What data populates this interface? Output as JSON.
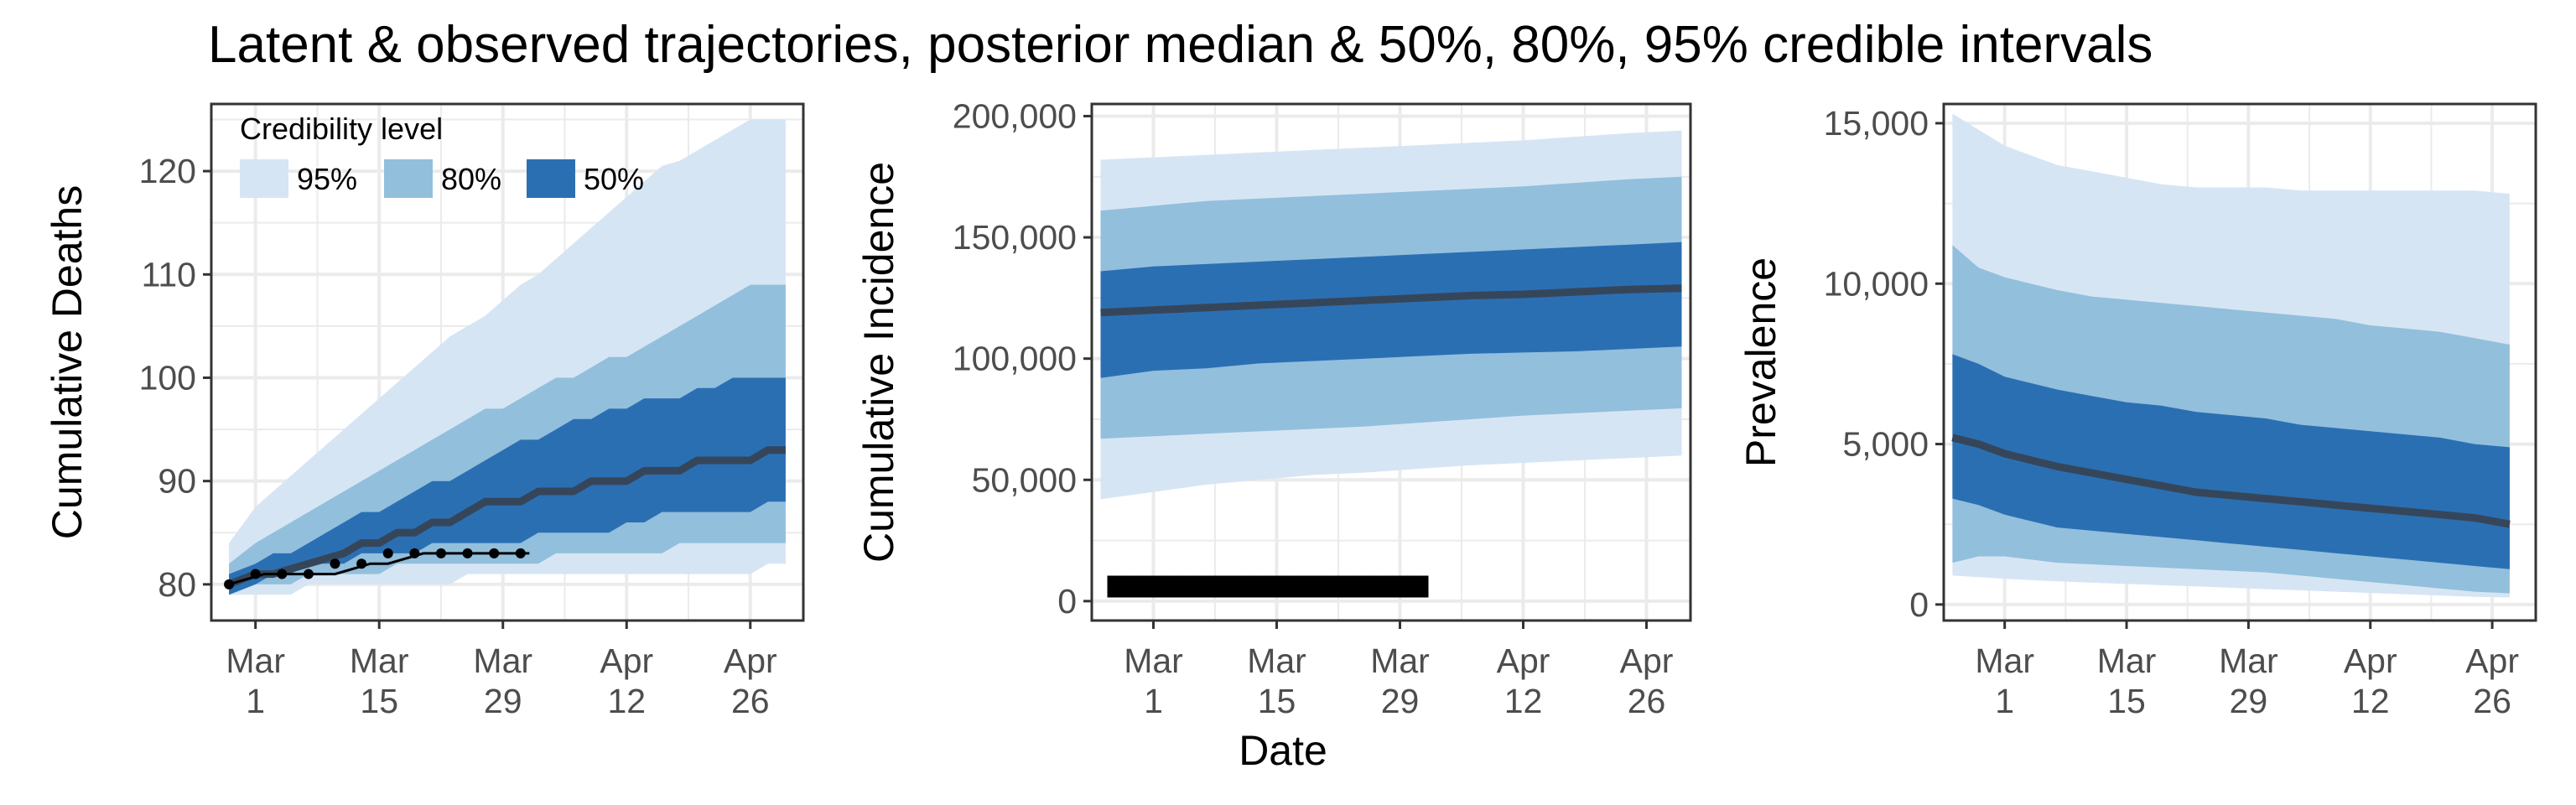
{
  "title": "Latent & observed trajectories, posterior median & 50%, 80%, 95% credible intervals",
  "xlabel": "Date",
  "colors": {
    "band95": "#d6e5f4",
    "band80": "#92bfdc",
    "band50": "#2b6fb3",
    "median": "#36465a",
    "observed": "#000000",
    "grid": "#ebebeb",
    "panel_border": "#333333"
  },
  "chart_data": [
    {
      "type": "area",
      "ylabel": "Cumulative Deaths",
      "xlim": [
        -5,
        62
      ],
      "ylim": [
        76.5,
        126.5
      ],
      "x_ticks": [
        {
          "x": 0,
          "label": [
            "Mar",
            "1"
          ]
        },
        {
          "x": 14,
          "label": [
            "Mar",
            "15"
          ]
        },
        {
          "x": 28,
          "label": [
            "Mar",
            "29"
          ]
        },
        {
          "x": 42,
          "label": [
            "Apr",
            "12"
          ]
        },
        {
          "x": 56,
          "label": [
            "Apr",
            "26"
          ]
        }
      ],
      "y_ticks": [
        80,
        90,
        100,
        110,
        120
      ],
      "y_tick_labels": [
        "80",
        "90",
        "100",
        "110",
        "120"
      ],
      "grid": true,
      "legend": {
        "title": "Credibility level",
        "position": "top-left",
        "items": [
          {
            "label": "95%",
            "band": "band95"
          },
          {
            "label": "80%",
            "band": "band80"
          },
          {
            "label": "50%",
            "band": "band50"
          }
        ]
      },
      "x": [
        -3,
        0,
        2,
        4,
        6,
        8,
        10,
        12,
        14,
        16,
        18,
        20,
        22,
        24,
        26,
        28,
        30,
        32,
        34,
        36,
        38,
        40,
        42,
        44,
        46,
        48,
        50,
        52,
        54,
        56,
        58,
        60
      ],
      "bands": {
        "p95": {
          "lower": [
            79,
            79,
            79,
            79,
            80,
            80,
            80,
            80,
            80,
            80,
            80,
            80,
            80,
            81,
            81,
            81,
            81,
            81,
            81,
            81,
            81,
            81,
            81,
            81,
            81,
            81,
            81,
            81,
            81,
            81,
            82,
            82
          ],
          "upper": [
            84,
            87.5,
            89,
            90.5,
            92,
            93.5,
            95,
            96.5,
            98,
            99.5,
            101,
            102.5,
            104,
            105,
            106,
            107.5,
            109,
            110,
            111.5,
            113,
            114.5,
            116,
            117.5,
            119,
            120.5,
            121,
            122,
            123,
            124,
            125,
            125,
            125
          ]
        },
        "p80": {
          "lower": [
            79,
            80,
            80,
            80,
            81,
            81,
            81,
            81,
            81,
            82,
            82,
            82,
            82,
            82,
            82,
            82,
            82,
            82,
            83,
            83,
            83,
            83,
            83,
            83,
            83,
            84,
            84,
            84,
            84,
            84,
            84,
            84
          ],
          "upper": [
            82,
            84,
            85,
            86,
            87,
            88,
            89,
            90,
            91,
            92,
            93,
            94,
            95,
            96,
            97,
            97,
            98,
            99,
            100,
            100,
            101,
            102,
            102,
            103,
            104,
            105,
            106,
            107,
            108,
            109,
            109,
            109
          ]
        },
        "p50": {
          "lower": [
            79,
            80,
            81,
            81,
            82,
            82,
            82,
            83,
            83,
            83,
            83,
            84,
            84,
            84,
            84,
            84,
            84,
            85,
            85,
            85,
            85,
            85,
            86,
            86,
            87,
            87,
            87,
            87,
            87,
            87,
            88,
            88
          ],
          "upper": [
            81,
            82,
            83,
            83,
            84,
            85,
            86,
            87,
            87,
            88,
            89,
            90,
            90,
            91,
            92,
            93,
            94,
            94,
            95,
            96,
            96,
            97,
            97,
            98,
            98,
            98,
            99,
            99,
            100,
            100,
            100,
            100
          ]
        }
      },
      "median": {
        "x": [
          -3,
          0,
          2,
          4,
          6,
          8,
          10,
          12,
          14,
          16,
          18,
          20,
          22,
          24,
          26,
          28,
          30,
          32,
          34,
          36,
          38,
          40,
          42,
          44,
          46,
          48,
          50,
          52,
          54,
          56,
          58,
          60
        ],
        "y": [
          80,
          81,
          81,
          81.5,
          82,
          82.5,
          83,
          84,
          84,
          85,
          85,
          86,
          86,
          87,
          88,
          88,
          88,
          89,
          89,
          89,
          90,
          90,
          90,
          91,
          91,
          91,
          92,
          92,
          92,
          92,
          93,
          93
        ]
      },
      "observed": {
        "x": [
          -3,
          -1,
          1,
          3,
          5,
          7,
          9,
          11,
          13,
          15,
          17,
          19,
          21,
          23,
          25,
          27,
          29,
          31
        ],
        "y": [
          80,
          80.5,
          81,
          81,
          81,
          81,
          81,
          81.5,
          82,
          82,
          82.5,
          83,
          83,
          83,
          83,
          83,
          83,
          83
        ],
        "points_x": [
          -3,
          0,
          3,
          6,
          9,
          12,
          15,
          18,
          21,
          24,
          27,
          30
        ],
        "points_y": [
          80,
          81,
          81,
          81,
          82,
          82,
          83,
          83,
          83,
          83,
          83,
          83
        ]
      }
    },
    {
      "type": "area",
      "ylabel": "Cumulative Incidence",
      "xlim": [
        -7,
        61
      ],
      "ylim": [
        -8000,
        205000
      ],
      "x_ticks": [
        {
          "x": 0,
          "label": [
            "Mar",
            "1"
          ]
        },
        {
          "x": 14,
          "label": [
            "Mar",
            "15"
          ]
        },
        {
          "x": 28,
          "label": [
            "Mar",
            "29"
          ]
        },
        {
          "x": 42,
          "label": [
            "Apr",
            "12"
          ]
        },
        {
          "x": 56,
          "label": [
            "Apr",
            "26"
          ]
        }
      ],
      "y_ticks": [
        0,
        50000,
        100000,
        150000,
        200000
      ],
      "y_tick_labels": [
        "0",
        "50,000",
        "100,000",
        "150,000",
        "200,000"
      ],
      "grid": true,
      "x": [
        -6,
        0,
        6,
        12,
        18,
        24,
        30,
        36,
        42,
        48,
        54,
        60
      ],
      "bands": {
        "p95": {
          "lower": [
            42000,
            45000,
            48000,
            50000,
            52000,
            53000,
            54500,
            56000,
            57000,
            58000,
            59000,
            60000
          ],
          "upper": [
            182000,
            183000,
            184000,
            185000,
            186000,
            187000,
            188000,
            189000,
            190000,
            191500,
            193000,
            194000
          ]
        },
        "p80": {
          "lower": [
            67000,
            68000,
            69000,
            70000,
            71000,
            72000,
            73500,
            75000,
            76500,
            77500,
            78500,
            79500
          ],
          "upper": [
            161000,
            163000,
            165000,
            166000,
            167000,
            168000,
            169000,
            170000,
            171000,
            172500,
            174000,
            175000
          ]
        },
        "p50": {
          "lower": [
            92000,
            95000,
            96000,
            98000,
            99000,
            100000,
            101000,
            102000,
            102500,
            103000,
            104000,
            105000
          ],
          "upper": [
            136000,
            138000,
            139000,
            140000,
            141000,
            142000,
            143000,
            144000,
            145000,
            146000,
            147000,
            148000
          ]
        }
      },
      "median": {
        "x": [
          -6,
          0,
          6,
          12,
          18,
          24,
          30,
          36,
          42,
          48,
          54,
          60
        ],
        "y": [
          119000,
          120000,
          121000,
          122000,
          123000,
          124000,
          125000,
          126000,
          126500,
          127500,
          128500,
          129000
        ]
      },
      "observed_squares": {
        "x": [
          -4,
          -2,
          0,
          2,
          4,
          6,
          8,
          10,
          12,
          14,
          16,
          18,
          20,
          22,
          24,
          26,
          28,
          30
        ],
        "y": [
          6000,
          6000,
          6000,
          6000,
          6000,
          6000,
          6000,
          6000,
          6000,
          6000,
          6000,
          6000,
          6000,
          6000,
          6000,
          6000,
          6000,
          6000
        ]
      }
    },
    {
      "type": "area",
      "ylabel": "Prevalence",
      "xlim": [
        -7,
        61
      ],
      "ylim": [
        -500,
        15600
      ],
      "x_ticks": [
        {
          "x": 0,
          "label": [
            "Mar",
            "1"
          ]
        },
        {
          "x": 14,
          "label": [
            "Mar",
            "15"
          ]
        },
        {
          "x": 28,
          "label": [
            "Mar",
            "29"
          ]
        },
        {
          "x": 42,
          "label": [
            "Apr",
            "12"
          ]
        },
        {
          "x": 56,
          "label": [
            "Apr",
            "26"
          ]
        }
      ],
      "y_ticks": [
        0,
        5000,
        10000,
        15000
      ],
      "y_tick_labels": [
        "0",
        "5,000",
        "10,000",
        "15,000"
      ],
      "grid": true,
      "x": [
        -6,
        -3,
        0,
        3,
        6,
        10,
        14,
        18,
        22,
        26,
        30,
        34,
        38,
        42,
        46,
        50,
        54,
        58
      ],
      "bands": {
        "p95": {
          "lower": [
            900,
            850,
            800,
            760,
            720,
            680,
            640,
            600,
            560,
            520,
            480,
            440,
            400,
            360,
            320,
            280,
            240,
            220
          ],
          "upper": [
            15300,
            14800,
            14300,
            14000,
            13700,
            13500,
            13300,
            13100,
            13000,
            13000,
            13000,
            12900,
            12900,
            12900,
            12900,
            12900,
            12900,
            12800
          ]
        },
        "p80": {
          "lower": [
            1300,
            1500,
            1500,
            1400,
            1300,
            1250,
            1200,
            1150,
            1100,
            1050,
            1000,
            900,
            800,
            700,
            600,
            500,
            400,
            350
          ],
          "upper": [
            11200,
            10500,
            10200,
            10000,
            9800,
            9600,
            9500,
            9400,
            9300,
            9200,
            9100,
            9000,
            8900,
            8700,
            8600,
            8500,
            8300,
            8100
          ]
        },
        "p50": {
          "lower": [
            3300,
            3100,
            2800,
            2600,
            2400,
            2300,
            2200,
            2100,
            2000,
            1900,
            1800,
            1700,
            1600,
            1500,
            1400,
            1300,
            1200,
            1100
          ],
          "upper": [
            7800,
            7500,
            7100,
            6900,
            6700,
            6500,
            6300,
            6200,
            6000,
            5900,
            5800,
            5600,
            5500,
            5400,
            5300,
            5200,
            5000,
            4900
          ]
        }
      },
      "median": {
        "x": [
          -6,
          -3,
          0,
          3,
          6,
          10,
          14,
          18,
          22,
          26,
          30,
          34,
          38,
          42,
          46,
          50,
          54,
          58
        ],
        "y": [
          5200,
          5000,
          4700,
          4500,
          4300,
          4100,
          3900,
          3700,
          3500,
          3400,
          3300,
          3200,
          3100,
          3000,
          2900,
          2800,
          2700,
          2500
        ]
      }
    }
  ]
}
